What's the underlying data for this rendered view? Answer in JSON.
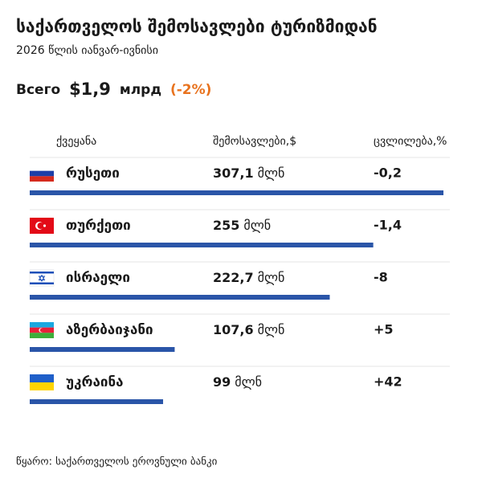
{
  "chart_data": {
    "type": "bar",
    "title": "საქართველოს შემოსავლები ტურიზმიდან",
    "subtitle": "2026 წლის იანვარ-ივნისი",
    "total": {
      "label": "Всего",
      "amount": "$1,9",
      "unit": "млрд",
      "change": "(-2%)"
    },
    "columns": [
      "ქვეყანა",
      "შემოსავლები,$",
      "ცვლილება,%"
    ],
    "categories": [
      "რუსეთი",
      "თურქეთი",
      "ისრაელი",
      "აზერბაიჯანი",
      "უკრაინა"
    ],
    "values": [
      307.1,
      255,
      222.7,
      107.6,
      99
    ],
    "value_labels": [
      "307,1",
      "255",
      "222,7",
      "107,6",
      "99"
    ],
    "value_unit": "მლნ",
    "changes": [
      -0.2,
      -1.4,
      -8,
      5,
      42
    ],
    "change_labels": [
      "-0,2",
      "-1,4",
      "-8",
      "+5",
      "+42"
    ],
    "color": "#2a55a8",
    "source": "წყარო: საქართველოს ეროვნული ბანკი"
  }
}
